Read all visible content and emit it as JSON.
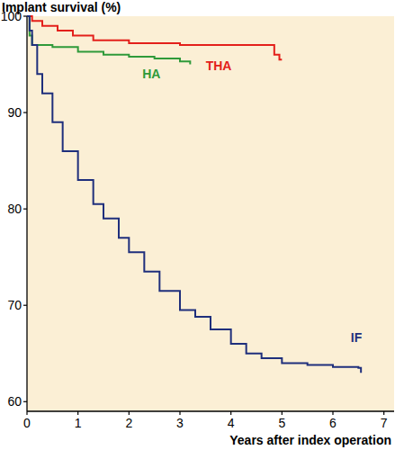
{
  "chart_data": {
    "type": "line",
    "line_style": "step",
    "y_label": "Implant survival (%)",
    "x_label": "Years after index operation",
    "xlim": [
      0,
      7.2
    ],
    "ylim": [
      59,
      100
    ],
    "xticks": [
      0,
      1,
      2,
      3,
      4,
      5,
      6,
      7
    ],
    "yticks": [
      60,
      70,
      80,
      90,
      100
    ],
    "grid": false,
    "series": [
      {
        "name": "THA",
        "color": "#e3201b",
        "label_x": 3.76,
        "label_y": 94.4,
        "x": [
          0,
          0.1,
          0.3,
          0.6,
          0.9,
          1.3,
          2.0,
          3.0,
          4.85,
          4.95,
          5.0
        ],
        "values": [
          100,
          99.5,
          99.0,
          98.5,
          98.0,
          97.5,
          97.2,
          97.0,
          96.0,
          95.5,
          95.5
        ]
      },
      {
        "name": "HA",
        "color": "#2f9a3a",
        "label_x": 2.44,
        "label_y": 93.6,
        "x": [
          0,
          0.05,
          0.1,
          0.5,
          1.0,
          1.5,
          2.0,
          2.5,
          3.0,
          3.2
        ],
        "values": [
          100,
          98.0,
          97.0,
          96.8,
          96.3,
          96.0,
          95.8,
          95.6,
          95.3,
          95.0
        ]
      },
      {
        "name": "IF",
        "color": "#1f2f7c",
        "label_x": 6.46,
        "label_y": 66.2,
        "x": [
          0,
          0.05,
          0.1,
          0.2,
          0.3,
          0.5,
          0.7,
          1.0,
          1.3,
          1.5,
          1.8,
          2.0,
          2.3,
          2.6,
          3.0,
          3.3,
          3.6,
          4.0,
          4.3,
          4.6,
          5.0,
          5.5,
          6.0,
          6.5,
          6.55
        ],
        "values": [
          100,
          98.5,
          97,
          94,
          92,
          89,
          86,
          83,
          80.5,
          79,
          77,
          75.5,
          73.5,
          71.5,
          69.5,
          68.8,
          67.5,
          66,
          65,
          64.5,
          64,
          63.8,
          63.6,
          63.5,
          63
        ]
      }
    ]
  }
}
